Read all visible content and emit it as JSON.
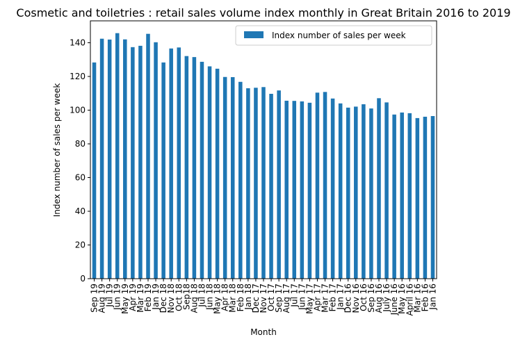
{
  "chart_data": {
    "type": "bar",
    "title": "Cosmetic and toiletries : retail sales volume index monthly in Great Britain 2016 to 2019",
    "xlabel": "Month",
    "ylabel": "Index number of sales per week",
    "ylim": [
      0,
      153
    ],
    "yticks": [
      0,
      20,
      40,
      60,
      80,
      100,
      120,
      140
    ],
    "grid": false,
    "legend_position": "top-right",
    "bar_color": "#1f77b4",
    "categories": [
      "Sep 19",
      "Aug 19",
      "Jul 19",
      "Jun 19",
      "May 19",
      "Apr 19",
      "Mar 19",
      "Feb 19",
      "Jan 19",
      "Dec 18",
      "Nov 18",
      "Oct 18",
      "Sep18",
      "Aug 18",
      "Jul 18",
      "Jun 18",
      "May 18",
      "Apr 18",
      "Mar 18",
      "Feb 18",
      "Jan 18",
      "Dec 17",
      "Nov 17",
      "Oct 17",
      "Sep 17",
      "Aug 17",
      "Jul 17",
      "Jun 17",
      "May 17",
      "Apr 17",
      "Mar 17",
      "Feb 17",
      "Jan 17",
      "Dec 16",
      "Nov 16",
      "Oct 16",
      "Sep 16",
      "Aug 16",
      "July 16",
      "June 16",
      "May 16",
      "April 16",
      "Mar 16",
      "Feb 16",
      "Jan 16"
    ],
    "series": [
      {
        "name": "Index number of sales per week",
        "values": [
          128.3,
          142.4,
          141.9,
          145.7,
          142.0,
          137.4,
          138.2,
          145.3,
          140.3,
          128.3,
          136.6,
          137.2,
          132.1,
          131.5,
          128.7,
          126.0,
          124.6,
          119.7,
          119.6,
          116.8,
          113.0,
          113.3,
          113.7,
          109.7,
          111.7,
          105.6,
          105.5,
          105.2,
          104.4,
          110.4,
          110.8,
          106.9,
          104.0,
          101.5,
          102.1,
          103.5,
          101.0,
          107.1,
          104.6,
          97.4,
          98.6,
          98.2,
          95.3,
          96.1,
          96.5
        ]
      }
    ]
  }
}
